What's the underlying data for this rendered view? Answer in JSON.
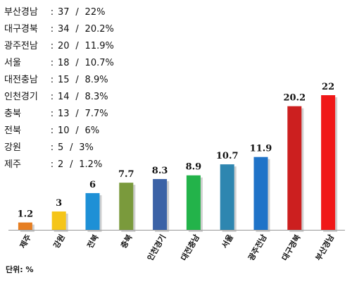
{
  "region_stats": [
    {
      "region": "부산경남",
      "count": "37",
      "percent": "22%"
    },
    {
      "region": "대구경북",
      "count": "34",
      "percent": "20.2%"
    },
    {
      "region": "광주전남",
      "count": "20",
      "percent": "11.9%"
    },
    {
      "region": "서울",
      "count": "18",
      "percent": "10.7%"
    },
    {
      "region": "대전충남",
      "count": "15",
      "percent": "8.9%"
    },
    {
      "region": "인천경기",
      "count": "14",
      "percent": "8.3%"
    },
    {
      "region": "충북",
      "count": "13",
      "percent": "7.7%"
    },
    {
      "region": "전북",
      "count": "10",
      "percent": "6%"
    },
    {
      "region": "강원",
      "count": "5",
      "percent": "3%"
    },
    {
      "region": "제주",
      "count": "2",
      "percent": "1.2%"
    }
  ],
  "unit_label": "단위: %",
  "chart_data": {
    "type": "bar",
    "categories": [
      "제주",
      "강원",
      "전북",
      "충북",
      "인천경기",
      "대전충남",
      "서울",
      "광주전남",
      "대구경북",
      "부산경남"
    ],
    "values": [
      1.2,
      3,
      6,
      7.7,
      8.3,
      8.9,
      10.7,
      11.9,
      20.2,
      22
    ],
    "value_labels": [
      "1.2",
      "3",
      "6",
      "7.7",
      "8.3",
      "8.9",
      "10.7",
      "11.9",
      "20.2",
      "22"
    ],
    "bar_colors": [
      "#e67e22",
      "#f5c518",
      "#1e90d6",
      "#7a9a3c",
      "#3b62a6",
      "#23b34a",
      "#2e86b0",
      "#1f73c8",
      "#cc1f1f",
      "#f01818"
    ],
    "ylim": [
      0,
      22
    ],
    "grid": false,
    "legend": "none"
  }
}
